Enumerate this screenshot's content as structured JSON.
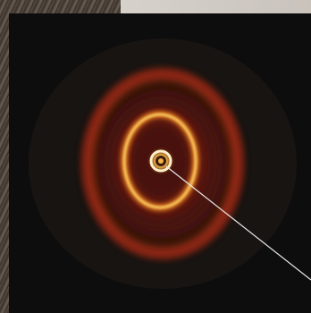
{
  "image": {
    "subject": "protoplanetary-disk-image",
    "colors": {
      "background": "#0e0d0d",
      "outer_halo": "#7a1f0d",
      "outer_ring": "#b8321a",
      "middle_ring": "#f0a836",
      "inner_ring": "#fff0c8",
      "pointer_line": "#e8e8e8"
    }
  }
}
